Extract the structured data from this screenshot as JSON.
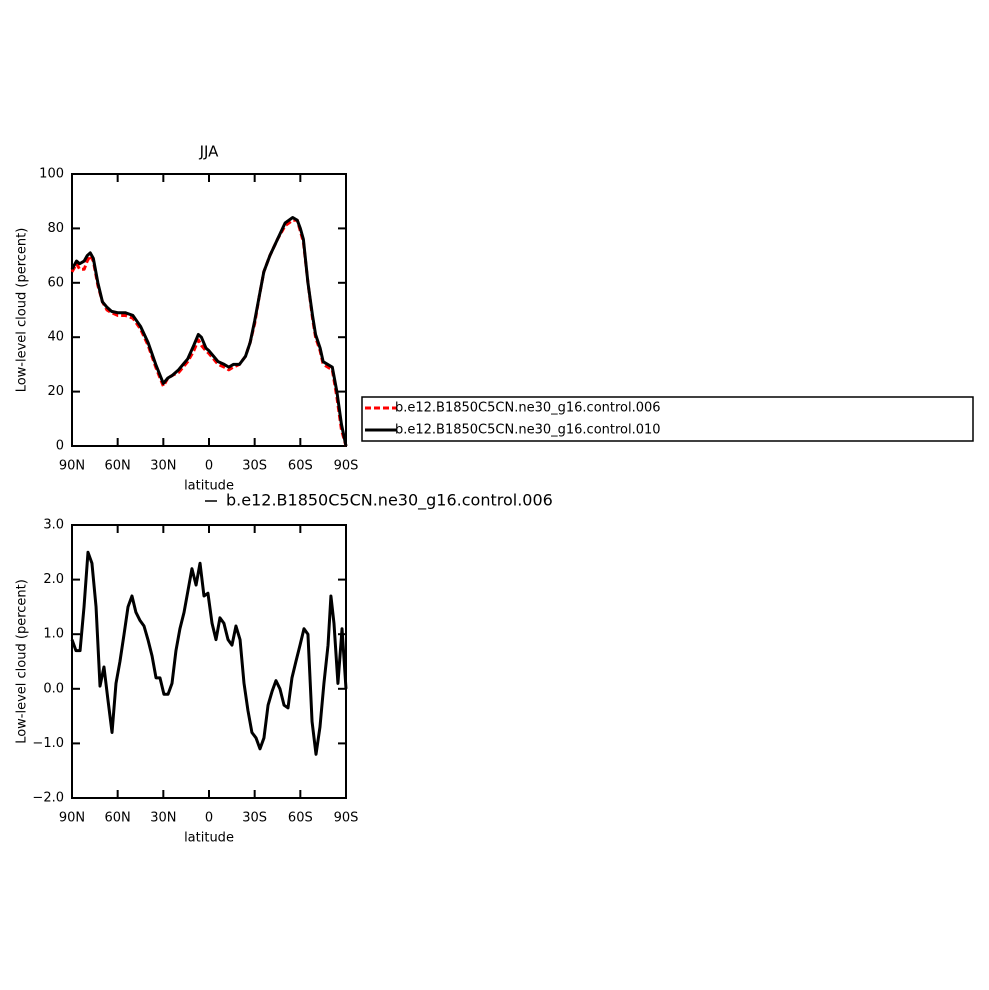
{
  "chart_data": [
    {
      "type": "line",
      "title": "JJA",
      "xlabel": "latitude",
      "ylabel": "Low-level cloud (percent)",
      "xlim": [
        90,
        -90
      ],
      "ylim": [
        0,
        100
      ],
      "xticks": [
        {
          "value": 90,
          "label": "90N"
        },
        {
          "value": 60,
          "label": "60N"
        },
        {
          "value": 30,
          "label": "30N"
        },
        0,
        {
          "value": -30,
          "label": "30S"
        },
        {
          "value": -60,
          "label": "60S"
        },
        {
          "value": -90,
          "label": "90S"
        }
      ],
      "yticks": [
        0,
        20,
        40,
        60,
        80,
        100
      ],
      "legend": "outside-right",
      "x": [
        90,
        87,
        85,
        82,
        80,
        78,
        76,
        73,
        70,
        67,
        64,
        60,
        55,
        50,
        45,
        40,
        35,
        30,
        27,
        24,
        20,
        17,
        14,
        10,
        7,
        5,
        2,
        0,
        -3,
        -6,
        -10,
        -13,
        -16,
        -20,
        -24,
        -27,
        -30,
        -33,
        -36,
        -40,
        -45,
        -50,
        -55,
        -58,
        -60,
        -62,
        -65,
        -68,
        -70,
        -73,
        -75,
        -78,
        -81,
        -84,
        -87,
        -90
      ],
      "series": [
        {
          "name": "b.e12.B1850C5CN.ne30_g16.control.006",
          "color": "#ff0000",
          "dashed": true,
          "values": [
            64,
            67,
            65,
            65,
            68,
            70,
            68,
            59,
            53,
            50,
            49,
            48,
            48,
            47,
            43,
            37,
            29,
            22,
            25,
            26,
            27,
            29,
            31,
            35,
            39,
            37,
            35,
            34,
            32,
            30,
            29,
            28,
            29,
            30,
            33,
            38,
            45,
            55,
            64,
            70,
            76,
            81,
            83,
            83,
            79,
            75,
            60,
            47,
            40,
            35,
            30,
            29,
            28,
            18,
            6,
            0
          ]
        },
        {
          "name": "b.e12.B1850C5CN.ne30_g16.control.010",
          "color": "#000000",
          "dashed": false,
          "values": [
            65,
            68,
            67,
            68,
            70,
            71,
            69,
            60,
            53,
            51,
            49.5,
            49,
            49,
            48,
            44,
            38,
            30,
            23,
            25,
            26,
            28,
            30,
            32,
            37,
            41,
            40,
            36,
            35,
            33,
            31,
            30,
            29,
            30,
            30,
            33,
            38,
            46,
            55,
            64,
            70,
            76,
            82,
            84,
            83,
            80,
            76,
            60,
            48,
            41,
            36,
            31,
            30,
            29,
            20,
            8,
            0
          ]
        }
      ]
    },
    {
      "type": "line",
      "xlabel": "latitude",
      "ylabel": "Low-level cloud (percent)",
      "xlim": [
        90,
        -90
      ],
      "ylim": [
        -2,
        3
      ],
      "xticks": [
        {
          "value": 90,
          "label": "90N"
        },
        {
          "value": 60,
          "label": "60N"
        },
        {
          "value": 30,
          "label": "30N"
        },
        0,
        {
          "value": -30,
          "label": "30S"
        },
        {
          "value": -60,
          "label": "60S"
        },
        {
          "value": -90,
          "label": "90S"
        }
      ],
      "yticks": [
        {
          "value": -2,
          "label": "−2.0"
        },
        {
          "value": -1,
          "label": "−1.0"
        },
        {
          "value": 0,
          "label": "0.0"
        },
        {
          "value": 1,
          "label": "1.0"
        },
        {
          "value": 2,
          "label": "2.0"
        },
        {
          "value": 3,
          "label": "3.0"
        }
      ],
      "legend": "top",
      "x": [
        90,
        87.4,
        84.7,
        82.1,
        79.5,
        76.9,
        74.2,
        71.6,
        69.0,
        66.4,
        63.7,
        61.1,
        58.5,
        55.8,
        53.2,
        50.6,
        48.0,
        45.3,
        42.7,
        40.1,
        37.4,
        34.8,
        32.2,
        29.6,
        26.9,
        24.3,
        21.7,
        19.1,
        16.4,
        13.8,
        11.2,
        8.5,
        5.9,
        3.3,
        0.7,
        -2.0,
        -4.6,
        -7.2,
        -9.8,
        -12.5,
        -15.1,
        -17.7,
        -20.4,
        -23.0,
        -25.6,
        -28.2,
        -30.9,
        -33.5,
        -36.1,
        -38.8,
        -41.4,
        -44.0,
        -46.6,
        -49.3,
        -51.9,
        -54.5,
        -57.1,
        -59.8,
        -62.4,
        -65.0,
        -67.7,
        -70.3,
        -72.9,
        -75.5,
        -78.2,
        -80.1,
        -82.1,
        -84.7,
        -87.4,
        -90
      ],
      "series": [
        {
          "name": "b.e12.B1850C5CN.ne30_g16.control.006",
          "color": "#000000",
          "dashed": false,
          "values": [
            0.9,
            0.7,
            0.7,
            1.5,
            2.5,
            2.3,
            1.5,
            0.05,
            0.4,
            -0.2,
            -0.8,
            0.1,
            0.5,
            1.0,
            1.5,
            1.7,
            1.4,
            1.25,
            1.15,
            0.9,
            0.6,
            0.2,
            0.2,
            -0.1,
            -0.1,
            0.1,
            0.7,
            1.1,
            1.4,
            1.8,
            2.2,
            1.9,
            2.3,
            1.7,
            1.75,
            1.2,
            0.9,
            1.3,
            1.2,
            0.9,
            0.8,
            1.15,
            0.9,
            0.1,
            -0.4,
            -0.8,
            -0.9,
            -1.1,
            -0.9,
            -0.3,
            -0.05,
            0.15,
            0.0,
            -0.3,
            -0.35,
            0.2,
            0.5,
            0.8,
            1.1,
            1.0,
            -0.6,
            -1.2,
            -0.7,
            0.1,
            0.8,
            1.7,
            1.2,
            0.1,
            1.1,
            0.0
          ]
        }
      ]
    }
  ]
}
